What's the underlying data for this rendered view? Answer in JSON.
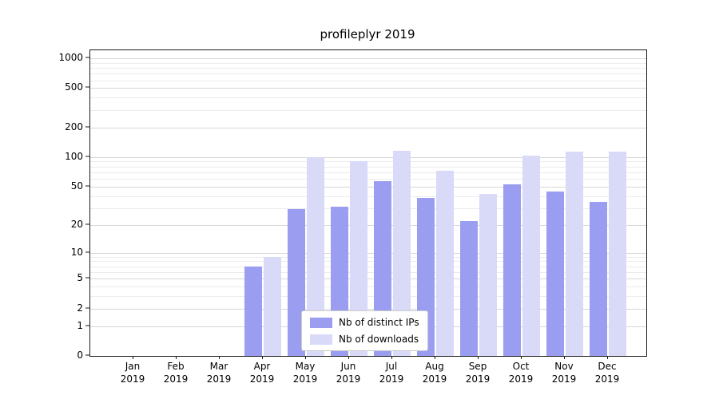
{
  "title": "profileplyr 2019",
  "chart_data": {
    "type": "bar",
    "title": "profileplyr 2019",
    "xlabel": "",
    "ylabel": "",
    "scale": "log1p",
    "ylim": [
      0,
      1200
    ],
    "grid": true,
    "legend_position": "lower center inside plot",
    "categories": [
      "Jan 2019",
      "Feb 2019",
      "Mar 2019",
      "Apr 2019",
      "May 2019",
      "Jun 2019",
      "Jul 2019",
      "Aug 2019",
      "Sep 2019",
      "Oct 2019",
      "Nov 2019",
      "Dec 2019"
    ],
    "x_tick_year": "2019",
    "series": [
      {
        "name": "Nb of distinct IPs",
        "color": "#9b9ef0",
        "values": [
          0,
          0,
          0,
          7,
          29,
          31,
          57,
          38,
          22,
          53,
          44,
          35
        ]
      },
      {
        "name": "Nb of downloads",
        "color": "#d8daf8",
        "values": [
          0,
          0,
          0,
          9,
          100,
          90,
          115,
          72,
          42,
          103,
          113,
          113
        ]
      }
    ],
    "y_ticks": [
      0,
      1,
      2,
      5,
      10,
      20,
      50,
      100,
      200,
      500,
      1000
    ],
    "y_minor_ticks": [
      3,
      4,
      6,
      7,
      8,
      9,
      30,
      40,
      60,
      70,
      80,
      90,
      300,
      400,
      600,
      700,
      800,
      900
    ]
  }
}
